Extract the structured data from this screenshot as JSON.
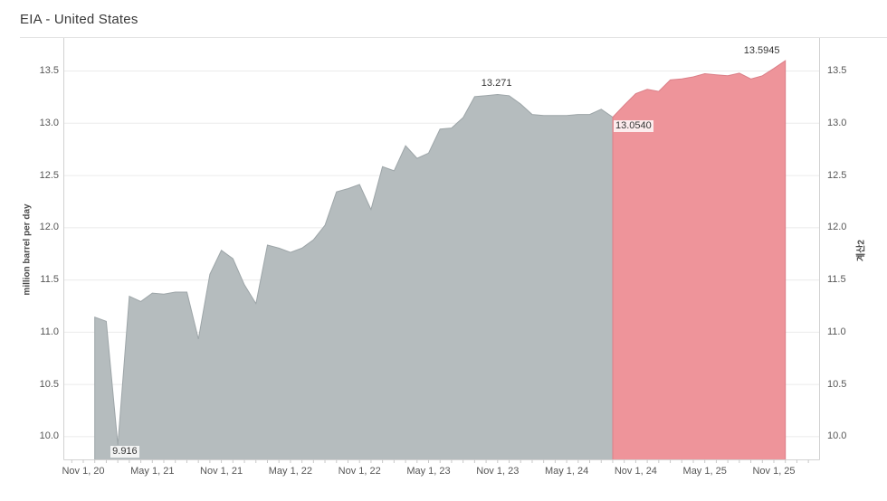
{
  "header": {
    "title": "EIA - United States"
  },
  "chart_data": {
    "type": "area",
    "title": "EIA - United States",
    "unit": "million barrel per day",
    "x_axis": {
      "tick_labels": [
        "Nov 1, 20",
        "May 1, 21",
        "Nov 1, 21",
        "May 1, 22",
        "Nov 1, 22",
        "May 1, 23",
        "Nov 1, 23",
        "May 1, 24",
        "Nov 1, 24",
        "May 1, 25",
        "Nov 1, 25"
      ],
      "months_between_ticks": 6,
      "grid": false
    },
    "y_axis_left": {
      "label": "million barrel per day",
      "tick_labels": [
        "10.0",
        "10.5",
        "11.0",
        "11.5",
        "12.0",
        "12.5",
        "13.0",
        "13.5"
      ],
      "range": [
        9.774,
        13.786
      ],
      "grid": true
    },
    "y_axis_right": {
      "label": "계산2",
      "tick_labels": [
        "10.0",
        "10.5",
        "11.0",
        "11.5",
        "12.0",
        "12.5",
        "13.0",
        "13.5"
      ],
      "range": [
        9.774,
        13.786
      ]
    },
    "series_meta": {
      "start_date": "2020-12-01",
      "interval": "monthly",
      "end_date": "2025-12-01",
      "forecast_start_index": 45,
      "actual_name": "history",
      "forecast_name": "forecast"
    },
    "values": [
      11.14,
      11.1,
      9.916,
      11.34,
      11.29,
      11.37,
      11.36,
      11.38,
      11.38,
      10.93,
      11.55,
      11.78,
      11.7,
      11.45,
      11.27,
      11.83,
      11.8,
      11.76,
      11.8,
      11.88,
      12.02,
      12.34,
      12.37,
      12.41,
      12.17,
      12.58,
      12.54,
      12.78,
      12.66,
      12.71,
      12.94,
      12.95,
      13.05,
      13.25,
      13.26,
      13.271,
      13.26,
      13.18,
      13.08,
      13.07,
      13.07,
      13.07,
      13.08,
      13.08,
      13.13,
      13.054,
      13.17,
      13.28,
      13.32,
      13.3,
      13.41,
      13.42,
      13.44,
      13.47,
      13.46,
      13.45,
      13.475,
      13.42,
      13.45,
      13.52,
      13.5945
    ],
    "annotations": [
      {
        "text": "9.916",
        "index": 2,
        "placement": "axis-bottom"
      },
      {
        "text": "13.271",
        "index": 35,
        "placement": "above-center"
      },
      {
        "text": "13.0540",
        "index": 45,
        "placement": "right-below"
      },
      {
        "text": "13.5945",
        "index": 60,
        "placement": "above-right"
      }
    ],
    "colors": {
      "actual_fill": "#b5bcbe",
      "actual_edge": "#9da5a8",
      "forecast_fill": "#ee949a",
      "forecast_edge": "#db7f88",
      "grid": "#ebebeb",
      "border": "#d2d2d2",
      "minor_tick": "#c9c9c9"
    }
  }
}
